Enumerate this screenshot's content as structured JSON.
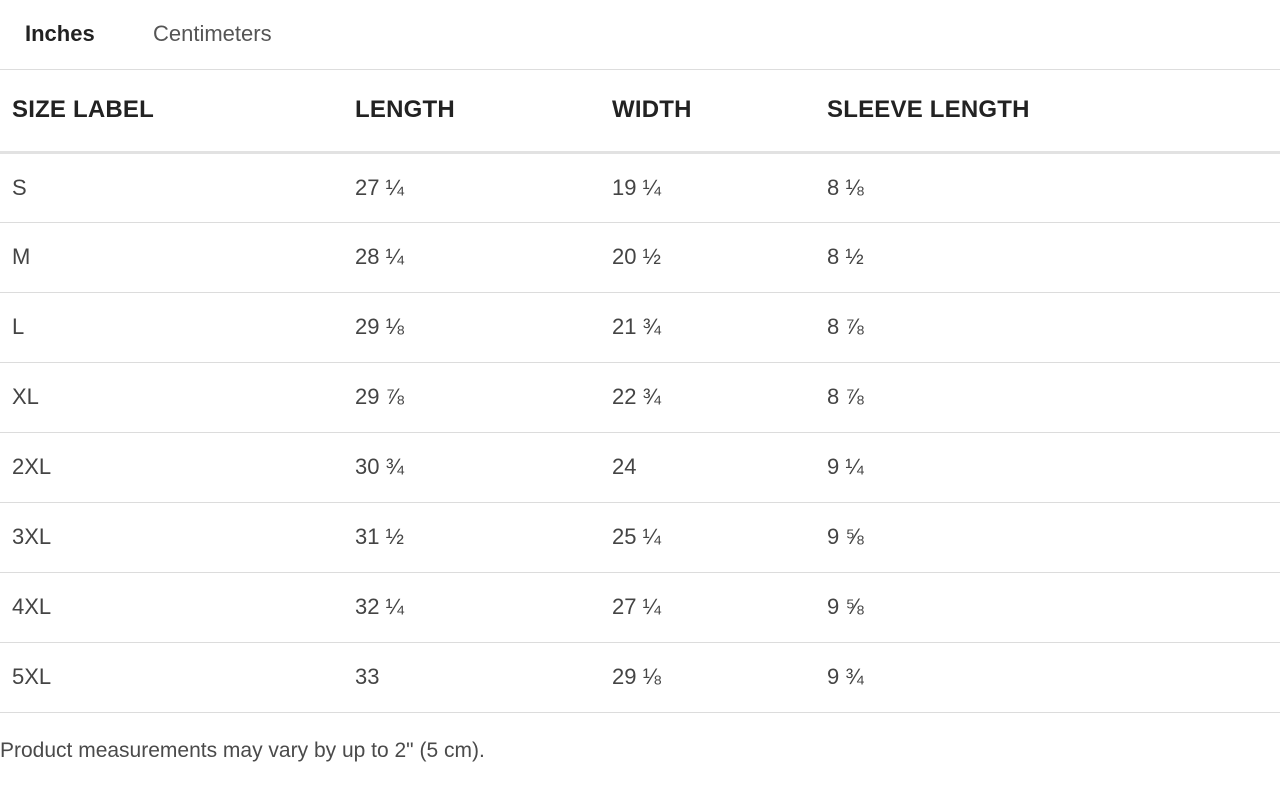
{
  "tabs": {
    "inches": "Inches",
    "centimeters": "Centimeters"
  },
  "table": {
    "headers": [
      "SIZE LABEL",
      "LENGTH",
      "WIDTH",
      "SLEEVE LENGTH"
    ],
    "rows": [
      [
        "S",
        "27 ¼",
        "19 ¼",
        "8 ⅛"
      ],
      [
        "M",
        "28 ¼",
        "20 ½",
        "8 ½"
      ],
      [
        "L",
        "29 ⅛",
        "21 ¾",
        "8 ⅞"
      ],
      [
        "XL",
        "29 ⅞",
        "22 ¾",
        "8 ⅞"
      ],
      [
        "2XL",
        "30 ¾",
        "24",
        "9 ¼"
      ],
      [
        "3XL",
        "31 ½",
        "25 ¼",
        "9 ⅝"
      ],
      [
        "4XL",
        "32 ¼",
        "27 ¼",
        "9 ⅝"
      ],
      [
        "5XL",
        "33",
        "29 ⅛",
        "9 ¾"
      ]
    ]
  },
  "note": "Product measurements may vary by up to 2\" (5 cm)."
}
